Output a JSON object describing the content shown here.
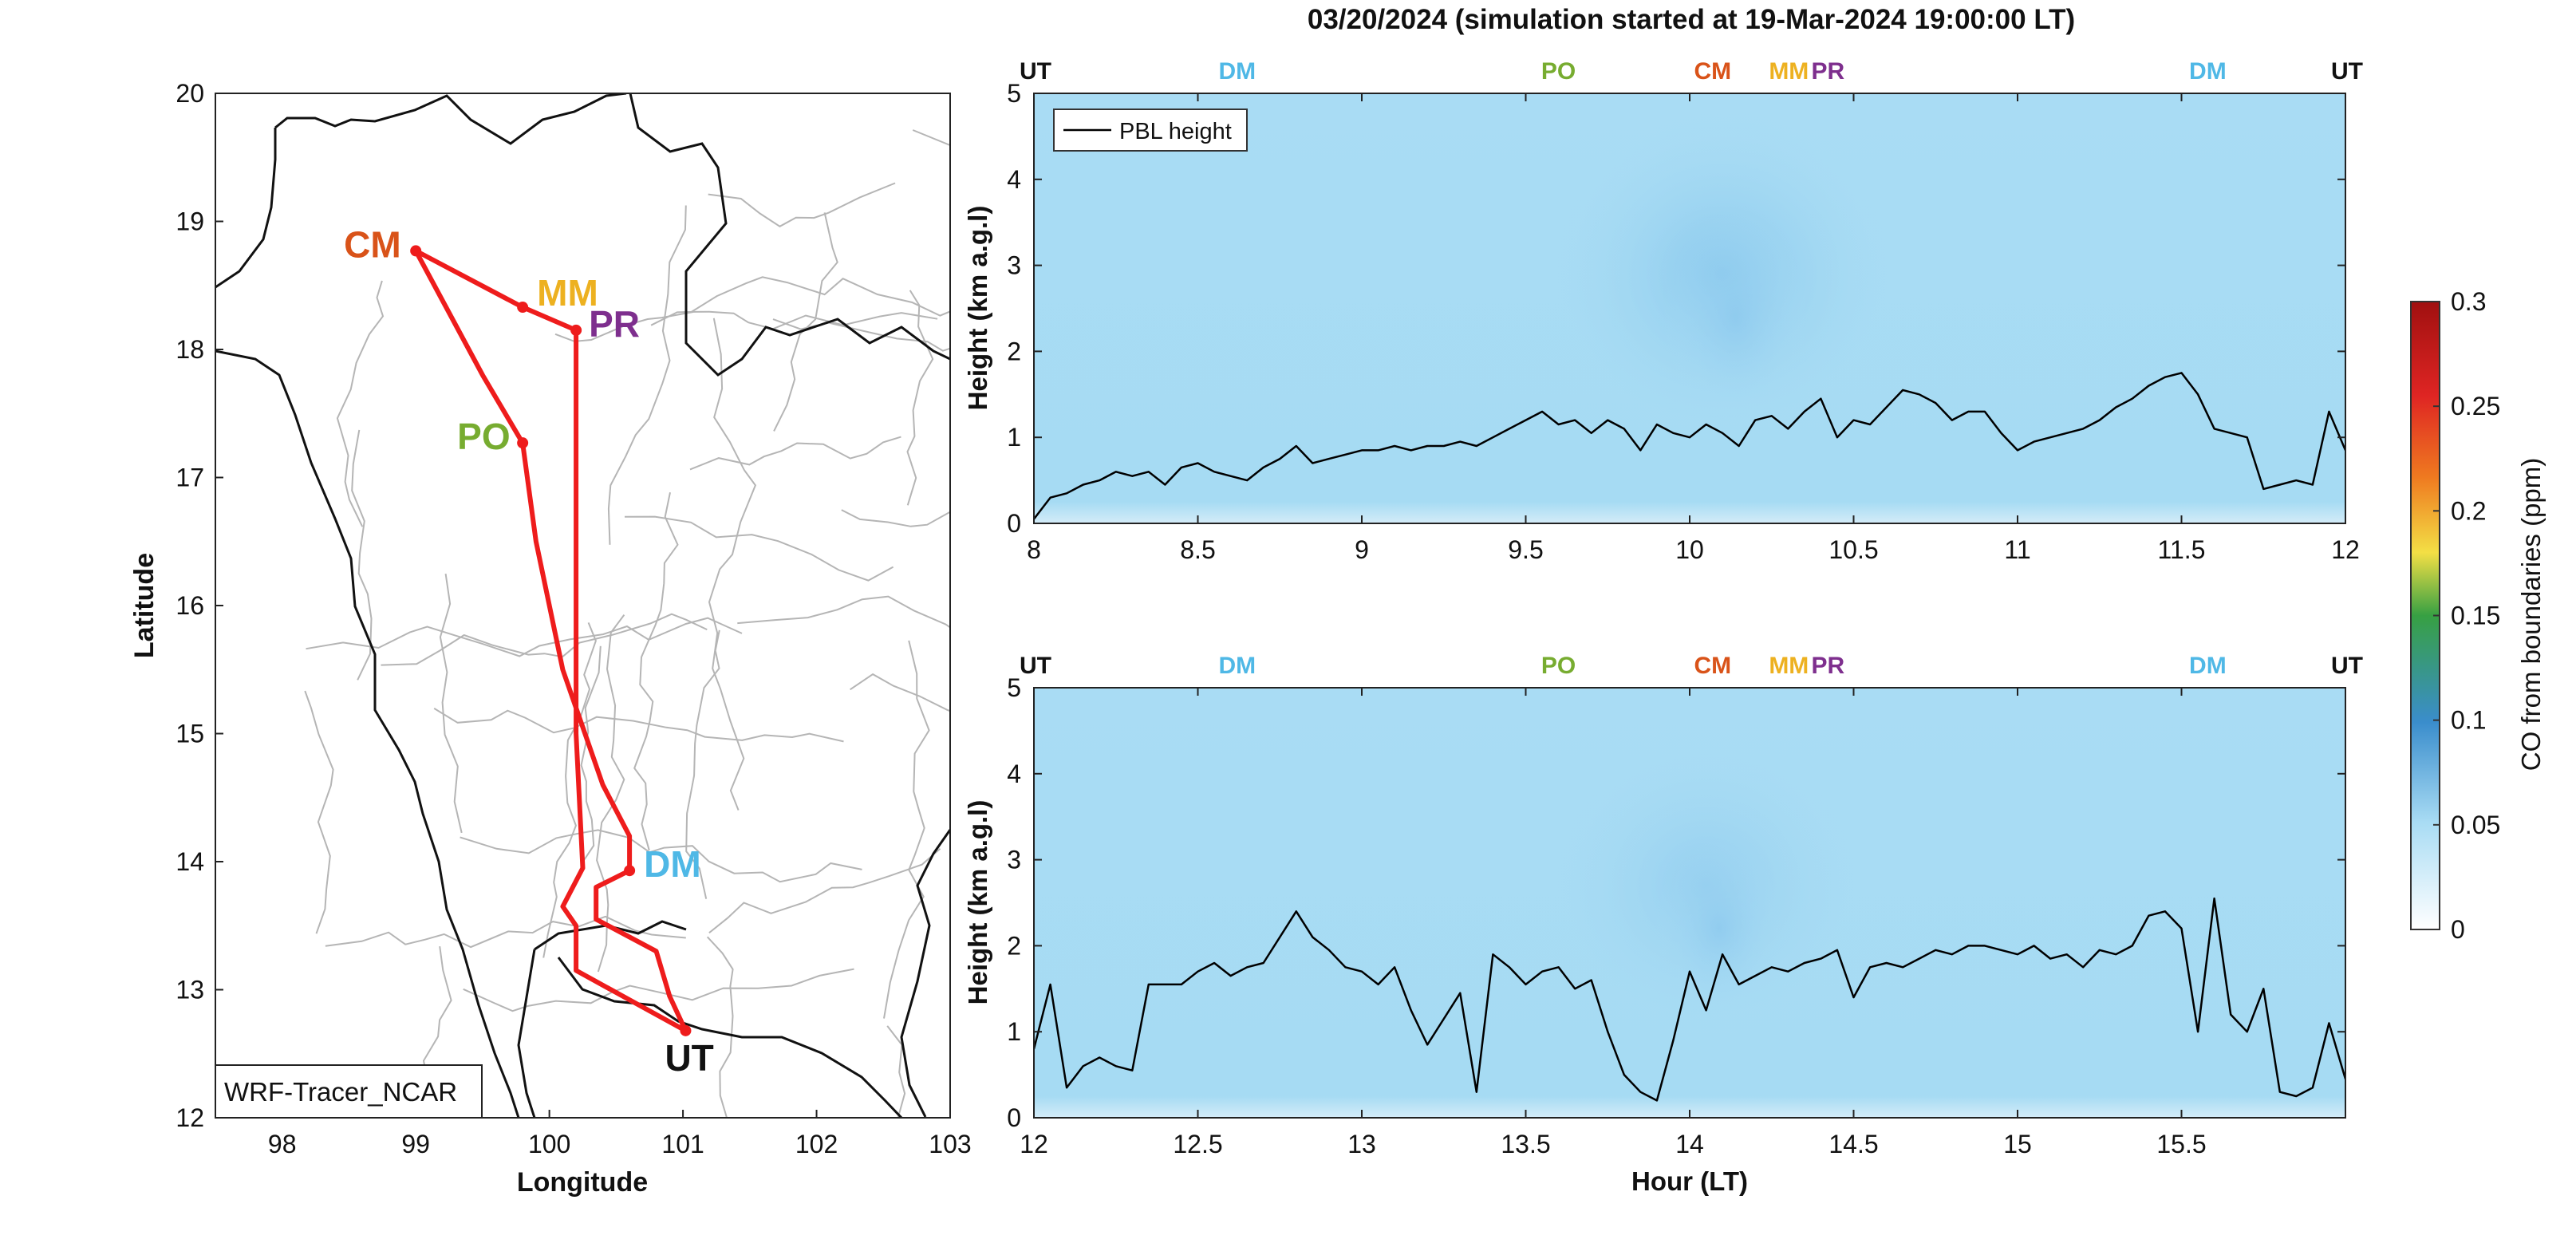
{
  "figure_title": "03/20/2024 (simulation started at 19-Mar-2024 19:00:00 LT)",
  "colors": {
    "route": "#ee1c1c",
    "UT": "#111111",
    "DM": "#4fb8e6",
    "PO": "#77ac30",
    "CM": "#d95319",
    "MM": "#edb120",
    "PR": "#7e2f8e",
    "pbl_line": "#000000",
    "field_low": "#e2f3fb",
    "field_base": "#a9dcf4",
    "field_high": "#7cc3ec"
  },
  "chart_data": [
    {
      "id": "map",
      "type": "scatter",
      "title": "",
      "xlabel": "Longitude",
      "ylabel": "Latitude",
      "xlim": [
        97.5,
        103
      ],
      "ylim": [
        12,
        20
      ],
      "xticks": [
        "98",
        "99",
        "100",
        "101",
        "102",
        "103"
      ],
      "yticks": [
        "12",
        "13",
        "14",
        "15",
        "16",
        "17",
        "18",
        "19",
        "20"
      ],
      "stations": [
        {
          "name": "CM",
          "lon": 99.0,
          "lat": 18.77
        },
        {
          "name": "MM",
          "lon": 99.8,
          "lat": 18.33
        },
        {
          "name": "PR",
          "lon": 100.2,
          "lat": 18.15
        },
        {
          "name": "PO",
          "lon": 99.8,
          "lat": 17.27
        },
        {
          "name": "DM",
          "lon": 100.6,
          "lat": 13.93
        },
        {
          "name": "UT",
          "lon": 101.02,
          "lat": 12.68
        }
      ],
      "route": [
        [
          101.02,
          12.68
        ],
        [
          100.2,
          13.15
        ],
        [
          100.2,
          13.5
        ],
        [
          100.1,
          13.65
        ],
        [
          100.25,
          13.95
        ],
        [
          100.2,
          15.0
        ],
        [
          100.2,
          16.0
        ],
        [
          100.2,
          16.8
        ],
        [
          100.2,
          18.15
        ],
        [
          99.8,
          18.33
        ],
        [
          99.0,
          18.77
        ],
        [
          99.5,
          17.8
        ],
        [
          99.8,
          17.27
        ],
        [
          99.9,
          16.5
        ],
        [
          100.1,
          15.5
        ],
        [
          100.4,
          14.6
        ],
        [
          100.6,
          14.2
        ],
        [
          100.6,
          13.93
        ],
        [
          100.35,
          13.8
        ],
        [
          100.35,
          13.55
        ],
        [
          100.8,
          13.3
        ],
        [
          100.9,
          12.95
        ],
        [
          101.02,
          12.68
        ]
      ],
      "inset_label": "WRF-Tracer_NCAR"
    },
    {
      "id": "curtain-1",
      "type": "line",
      "title": "",
      "xlabel": "",
      "ylabel": "Height (km a.g.l)",
      "xlim": [
        8,
        12
      ],
      "ylim": [
        0,
        5
      ],
      "xticks": [
        "8",
        "8.5",
        "9",
        "9.5",
        "10",
        "10.5",
        "11",
        "11.5",
        "12"
      ],
      "yticks": [
        "0",
        "1",
        "2",
        "3",
        "4",
        "5"
      ],
      "legend": "top-left",
      "legend_label": "PBL height",
      "top_markers": [
        {
          "label": "UT",
          "x": 8.0
        },
        {
          "label": "DM",
          "x": 8.62
        },
        {
          "label": "PO",
          "x": 9.6
        },
        {
          "label": "CM",
          "x": 10.07
        },
        {
          "label": "MM",
          "x": 10.3
        },
        {
          "label": "PR",
          "x": 10.41
        },
        {
          "label": "DM",
          "x": 11.58
        },
        {
          "label": "UT",
          "x": 12.0
        }
      ],
      "series": [
        {
          "name": "PBL height",
          "x": [
            8.0,
            8.05,
            8.1,
            8.15,
            8.2,
            8.25,
            8.3,
            8.35,
            8.4,
            8.45,
            8.5,
            8.55,
            8.6,
            8.65,
            8.7,
            8.75,
            8.8,
            8.85,
            8.9,
            8.95,
            9.0,
            9.05,
            9.1,
            9.15,
            9.2,
            9.25,
            9.3,
            9.35,
            9.4,
            9.45,
            9.5,
            9.55,
            9.6,
            9.65,
            9.7,
            9.75,
            9.8,
            9.85,
            9.9,
            9.95,
            10.0,
            10.05,
            10.1,
            10.15,
            10.2,
            10.25,
            10.3,
            10.35,
            10.4,
            10.45,
            10.5,
            10.55,
            10.6,
            10.65,
            10.7,
            10.75,
            10.8,
            10.85,
            10.9,
            10.95,
            11.0,
            11.05,
            11.1,
            11.15,
            11.2,
            11.25,
            11.3,
            11.35,
            11.4,
            11.45,
            11.5,
            11.55,
            11.6,
            11.65,
            11.7,
            11.75,
            11.8,
            11.85,
            11.9,
            11.95,
            12.0
          ],
          "values": [
            0.05,
            0.3,
            0.35,
            0.45,
            0.5,
            0.6,
            0.55,
            0.6,
            0.45,
            0.65,
            0.7,
            0.6,
            0.55,
            0.5,
            0.65,
            0.75,
            0.9,
            0.7,
            0.75,
            0.8,
            0.85,
            0.85,
            0.9,
            0.85,
            0.9,
            0.9,
            0.95,
            0.9,
            1.0,
            1.1,
            1.2,
            1.3,
            1.15,
            1.2,
            1.05,
            1.2,
            1.1,
            0.85,
            1.15,
            1.05,
            1.0,
            1.15,
            1.05,
            0.9,
            1.2,
            1.25,
            1.1,
            1.3,
            1.45,
            1.0,
            1.2,
            1.15,
            1.35,
            1.55,
            1.5,
            1.4,
            1.2,
            1.3,
            1.3,
            1.05,
            0.85,
            0.95,
            1.0,
            1.05,
            1.1,
            1.2,
            1.35,
            1.45,
            1.6,
            1.7,
            1.75,
            1.5,
            1.1,
            1.05,
            1.0,
            0.4,
            0.45,
            0.5,
            0.45,
            1.3,
            0.85
          ]
        }
      ],
      "field": {
        "name": "CO from boundaries (ppm)",
        "base": 0.05,
        "max_near": {
          "x": 10.1,
          "height": 2.4,
          "value": 0.07
        }
      }
    },
    {
      "id": "curtain-2",
      "type": "line",
      "title": "",
      "xlabel": "Hour (LT)",
      "ylabel": "Height (km a.g.l)",
      "xlim": [
        12,
        16
      ],
      "ylim": [
        0,
        5
      ],
      "xticks": [
        "12",
        "12.5",
        "13",
        "13.5",
        "14",
        "14.5",
        "15",
        "15.5"
      ],
      "yticks": [
        "0",
        "1",
        "2",
        "3",
        "4",
        "5"
      ],
      "top_markers": [
        {
          "label": "UT",
          "x": 12.0
        },
        {
          "label": "DM",
          "x": 12.62
        },
        {
          "label": "PO",
          "x": 13.6
        },
        {
          "label": "CM",
          "x": 14.07
        },
        {
          "label": "MM",
          "x": 14.3
        },
        {
          "label": "PR",
          "x": 14.41
        },
        {
          "label": "DM",
          "x": 15.58
        },
        {
          "label": "UT",
          "x": 16.0
        }
      ],
      "series": [
        {
          "name": "PBL height",
          "x": [
            12.0,
            12.05,
            12.1,
            12.15,
            12.2,
            12.25,
            12.3,
            12.35,
            12.4,
            12.45,
            12.5,
            12.55,
            12.6,
            12.65,
            12.7,
            12.75,
            12.8,
            12.85,
            12.9,
            12.95,
            13.0,
            13.05,
            13.1,
            13.15,
            13.2,
            13.25,
            13.3,
            13.35,
            13.4,
            13.45,
            13.5,
            13.55,
            13.6,
            13.65,
            13.7,
            13.75,
            13.8,
            13.85,
            13.9,
            13.95,
            14.0,
            14.05,
            14.1,
            14.15,
            14.2,
            14.25,
            14.3,
            14.35,
            14.4,
            14.45,
            14.5,
            14.55,
            14.6,
            14.65,
            14.7,
            14.75,
            14.8,
            14.85,
            14.9,
            14.95,
            15.0,
            15.05,
            15.1,
            15.15,
            15.2,
            15.25,
            15.3,
            15.35,
            15.4,
            15.45,
            15.5,
            15.55,
            15.6,
            15.65,
            15.7,
            15.75,
            15.8,
            15.85,
            15.9,
            15.95,
            16.0
          ],
          "values": [
            0.8,
            1.55,
            0.35,
            0.6,
            0.7,
            0.6,
            0.55,
            1.55,
            1.55,
            1.55,
            1.7,
            1.8,
            1.65,
            1.75,
            1.8,
            2.1,
            2.4,
            2.1,
            1.95,
            1.75,
            1.7,
            1.55,
            1.75,
            1.25,
            0.85,
            1.15,
            1.45,
            0.3,
            1.9,
            1.75,
            1.55,
            1.7,
            1.75,
            1.5,
            1.6,
            1.0,
            0.5,
            0.3,
            0.2,
            0.9,
            1.7,
            1.25,
            1.9,
            1.55,
            1.65,
            1.75,
            1.7,
            1.8,
            1.85,
            1.95,
            1.4,
            1.75,
            1.8,
            1.75,
            1.85,
            1.95,
            1.9,
            2.0,
            2.0,
            1.95,
            1.9,
            2.0,
            1.85,
            1.9,
            1.75,
            1.95,
            1.9,
            2.0,
            2.35,
            2.4,
            2.2,
            1.0,
            2.55,
            1.2,
            1.0,
            1.5,
            0.3,
            0.25,
            0.35,
            1.1,
            0.45
          ]
        }
      ],
      "field": {
        "name": "CO from boundaries (ppm)",
        "base": 0.05,
        "max_near": {
          "x": 14.05,
          "height": 2.2,
          "value": 0.065
        }
      }
    }
  ],
  "colorbar": {
    "label": "CO from boundaries (ppm)",
    "ticks": [
      "0",
      "0.05",
      "0.1",
      "0.15",
      "0.2",
      "0.25",
      "0.3"
    ],
    "range": [
      0,
      0.3
    ],
    "stops": [
      "#ffffff",
      "#a9dcf4",
      "#3a8dcc",
      "#37a043",
      "#f3df45",
      "#ef7a20",
      "#df2523",
      "#a01010"
    ]
  }
}
